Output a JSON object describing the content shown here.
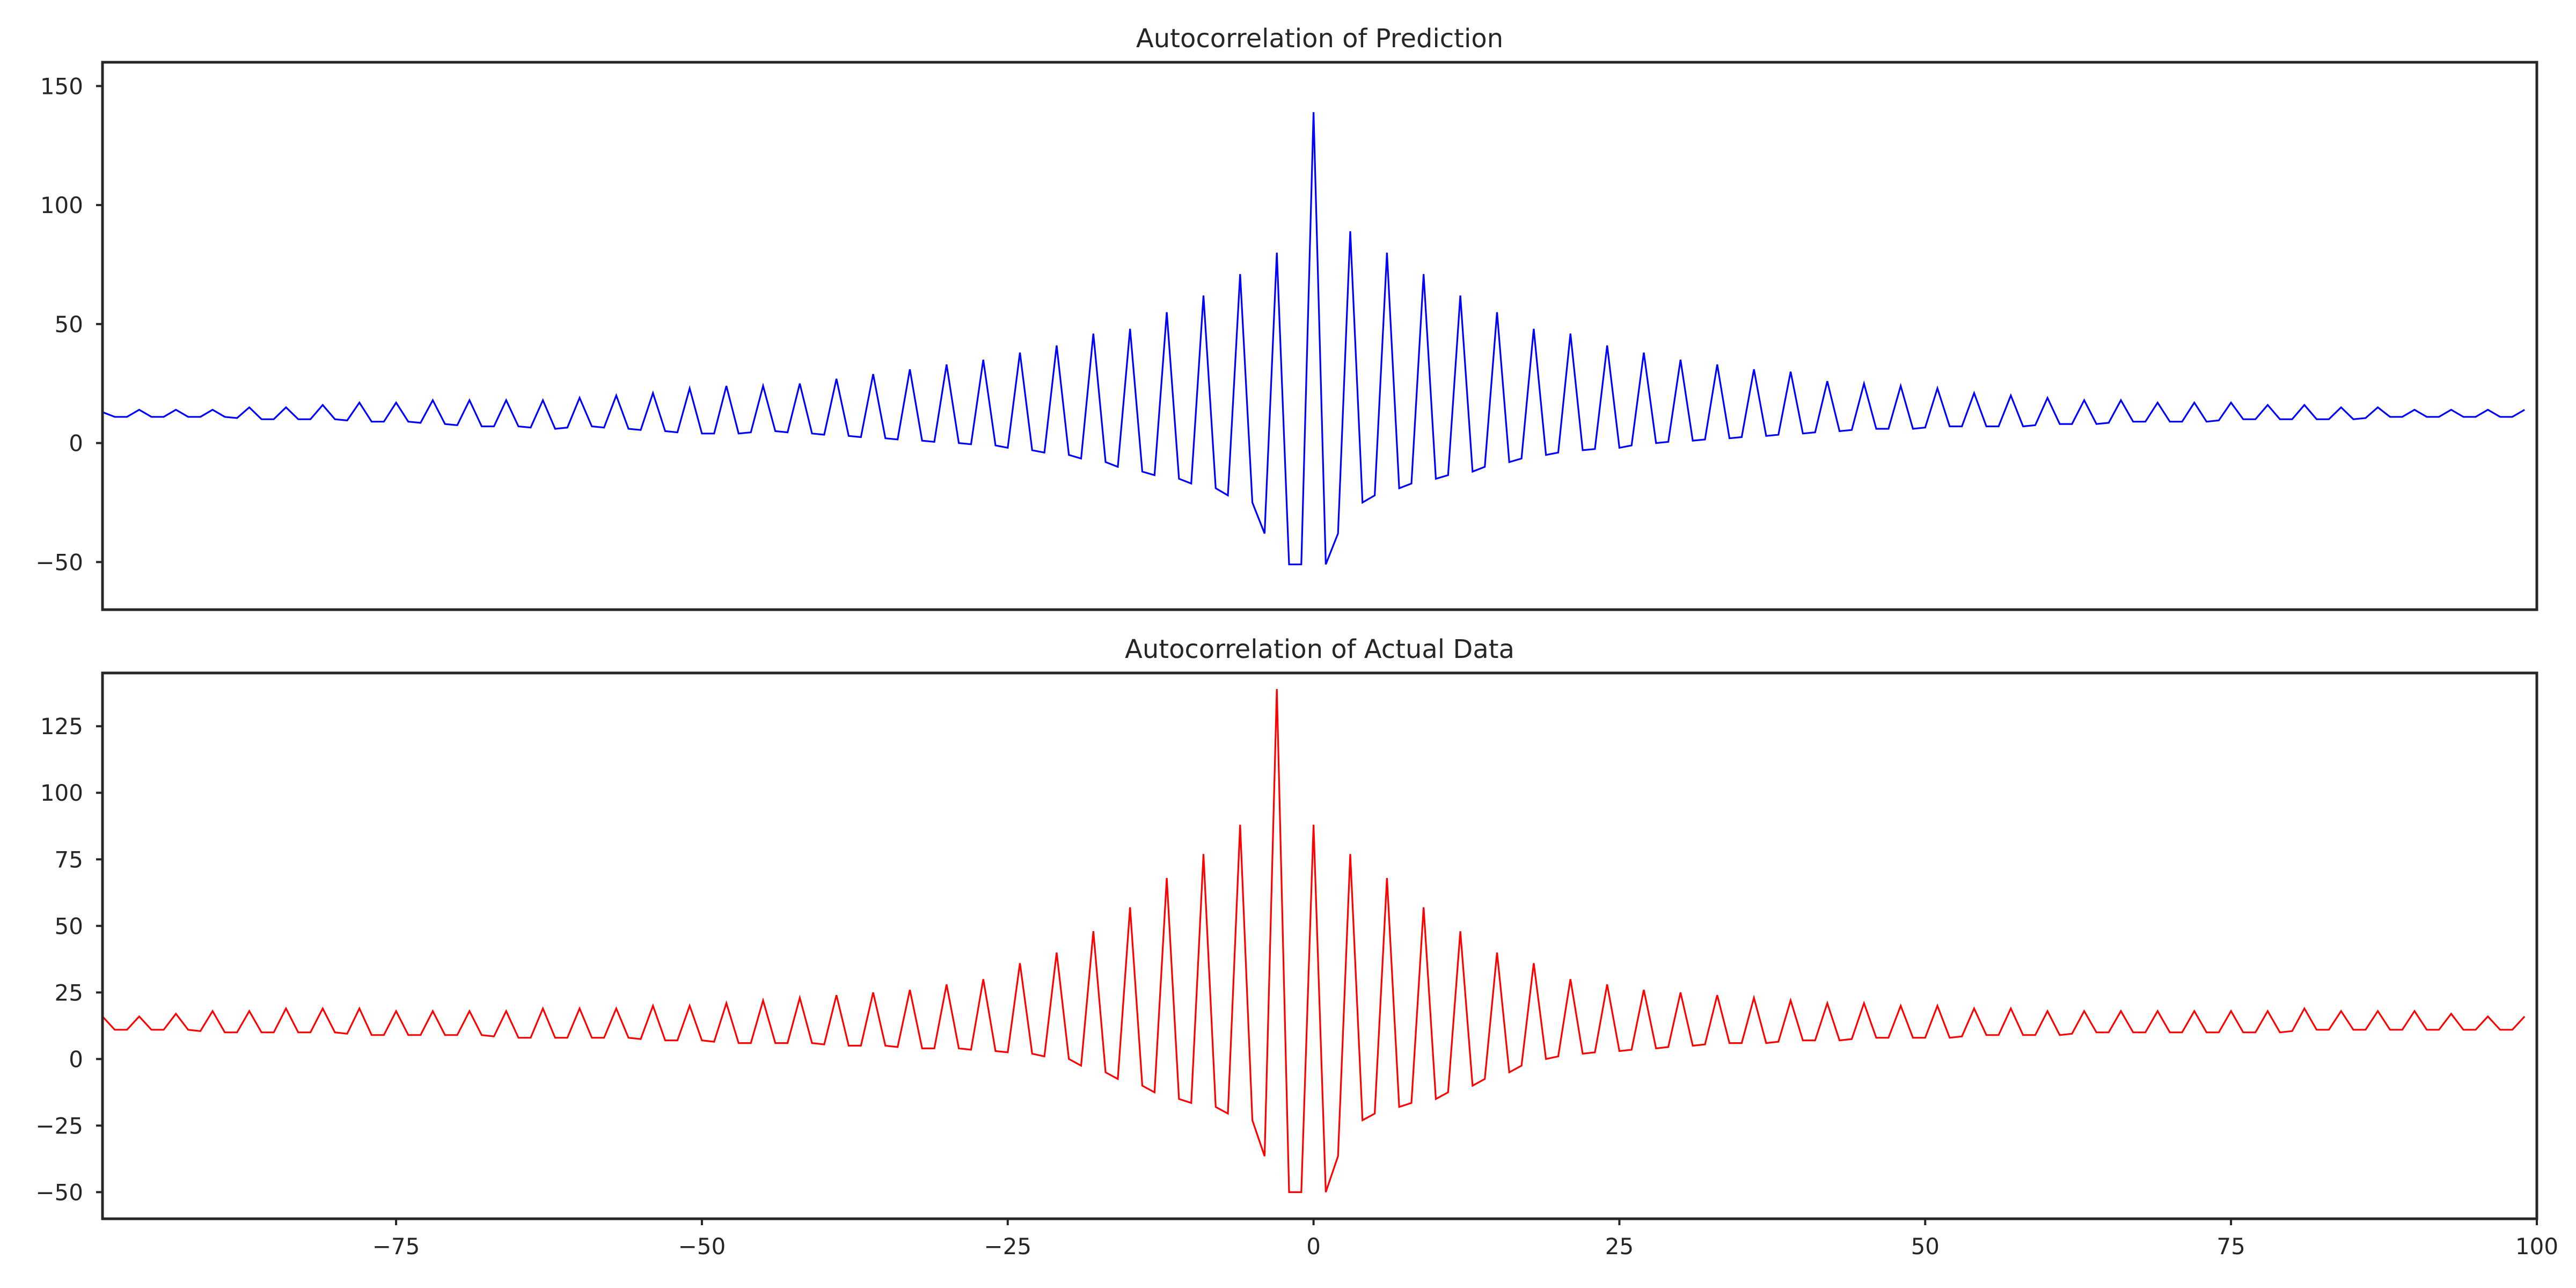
{
  "chart_data": [
    {
      "type": "line",
      "title": "Autocorrelation of Prediction",
      "xlabel": "",
      "ylabel": "",
      "xlim": [
        -99,
        100
      ],
      "ylim": [
        -70,
        160
      ],
      "grid": false,
      "legend": "none",
      "color": "#0000ff",
      "yticks": [
        -50,
        0,
        50,
        100,
        150
      ],
      "y_tick_labels": [
        "−50",
        "0",
        "50",
        "100",
        "150"
      ],
      "xticks": [],
      "x_tick_labels": [],
      "series": [
        {
          "x_start": -99,
          "x_step": 0.666,
          "peak_lags": [
            -99,
            -96,
            -93,
            -90,
            -87,
            -84,
            -81,
            -78,
            -75,
            -72,
            -69,
            -66,
            -63,
            -60,
            -57,
            -54,
            -51,
            -48,
            -45,
            -42,
            -39,
            -36,
            -33,
            -30,
            -27,
            -24,
            -21,
            -18,
            -15,
            -12,
            -9,
            -6,
            -3,
            0,
            3,
            6,
            9,
            12,
            15,
            18,
            21,
            24,
            27,
            30,
            33,
            36,
            39,
            42,
            45,
            48,
            51,
            54,
            57,
            60,
            63,
            66,
            69,
            72,
            75,
            78,
            81,
            84,
            87,
            90,
            93,
            96,
            99
          ],
          "peaks": [
            13,
            14,
            14,
            14,
            15,
            15,
            16,
            17,
            17,
            18,
            18,
            18,
            18,
            19,
            20,
            21,
            23,
            24,
            24,
            25,
            27,
            29,
            31,
            33,
            35,
            38,
            41,
            46,
            48,
            55,
            62,
            71,
            80,
            139,
            89,
            80,
            71,
            62,
            55,
            48,
            46,
            41,
            38,
            35,
            33,
            31,
            30,
            26,
            25,
            24,
            23,
            21,
            20,
            19,
            18,
            18,
            17,
            17,
            17,
            16,
            16,
            15,
            15,
            14,
            14,
            14,
            14
          ],
          "troughs": [
            11,
            11,
            11,
            11,
            10,
            10,
            10,
            9,
            9,
            8,
            7,
            7,
            6,
            7,
            6,
            5,
            4,
            4,
            5,
            4,
            3,
            2,
            1,
            0,
            -1,
            -3,
            -5,
            -8,
            -12,
            -15,
            -19,
            -25,
            -51,
            -51,
            -25,
            -19,
            -15,
            -12,
            -8,
            -5,
            -3,
            -2,
            0,
            1,
            2,
            3,
            4,
            5,
            6,
            6,
            7,
            7,
            7,
            8,
            8,
            9,
            9,
            9,
            10,
            10,
            10,
            10,
            11,
            11,
            11,
            11
          ]
        }
      ]
    },
    {
      "type": "line",
      "title": "Autocorrelation of Actual Data",
      "xlabel": "",
      "ylabel": "",
      "xlim": [
        -99,
        100
      ],
      "ylim": [
        -60,
        145
      ],
      "grid": false,
      "legend": "none",
      "color": "#ff0000",
      "yticks": [
        -50,
        -25,
        0,
        25,
        50,
        75,
        100,
        125
      ],
      "y_tick_labels": [
        "−50",
        "−25",
        "0",
        "25",
        "50",
        "75",
        "100",
        "125"
      ],
      "xticks": [
        -75,
        -50,
        -25,
        0,
        25,
        50,
        75,
        100
      ],
      "x_tick_labels": [
        "−75",
        "−50",
        "−25",
        "0",
        "25",
        "50",
        "75",
        "100"
      ],
      "series": [
        {
          "x_start": -99,
          "x_step": 0.666,
          "peak_lags": [
            -99,
            -96,
            -93,
            -90,
            -87,
            -84,
            -81,
            -78,
            -75,
            -72,
            -69,
            -66,
            -63,
            -60,
            -57,
            -54,
            -51,
            -48,
            -45,
            -42,
            -39,
            -36,
            -33,
            -30,
            -27,
            -24,
            -21,
            -18,
            -15,
            -12,
            -9,
            -6,
            -3,
            0,
            3,
            6,
            9,
            12,
            15,
            18,
            21,
            24,
            27,
            30,
            33,
            36,
            39,
            42,
            45,
            48,
            51,
            54,
            57,
            60,
            63,
            66,
            69,
            72,
            75,
            78,
            81,
            84,
            87,
            90,
            93,
            96,
            99
          ],
          "peaks": [
            16,
            16,
            17,
            18,
            18,
            19,
            19,
            19,
            18,
            18,
            18,
            18,
            19,
            19,
            19,
            20,
            20,
            21,
            22,
            23,
            24,
            25,
            26,
            28,
            30,
            36,
            40,
            48,
            57,
            68,
            77,
            88,
            139,
            88,
            77,
            68,
            57,
            48,
            40,
            36,
            30,
            28,
            26,
            25,
            24,
            23,
            22,
            21,
            21,
            20,
            20,
            19,
            19,
            18,
            18,
            18,
            18,
            18,
            18,
            18,
            19,
            18,
            18,
            18,
            17,
            16,
            16
          ],
          "troughs": [
            11,
            11,
            11,
            10,
            10,
            10,
            10,
            9,
            9,
            9,
            9,
            8,
            8,
            8,
            8,
            7,
            7,
            6,
            6,
            6,
            5,
            5,
            4,
            4,
            3,
            2,
            0,
            -5,
            -10,
            -15,
            -18,
            -23,
            -50,
            -50,
            -23,
            -18,
            -15,
            -10,
            -5,
            0,
            2,
            3,
            4,
            5,
            6,
            6,
            7,
            7,
            8,
            8,
            8,
            9,
            9,
            9,
            10,
            10,
            10,
            10,
            10,
            10,
            11,
            11,
            11,
            11,
            11,
            11
          ]
        }
      ]
    }
  ]
}
